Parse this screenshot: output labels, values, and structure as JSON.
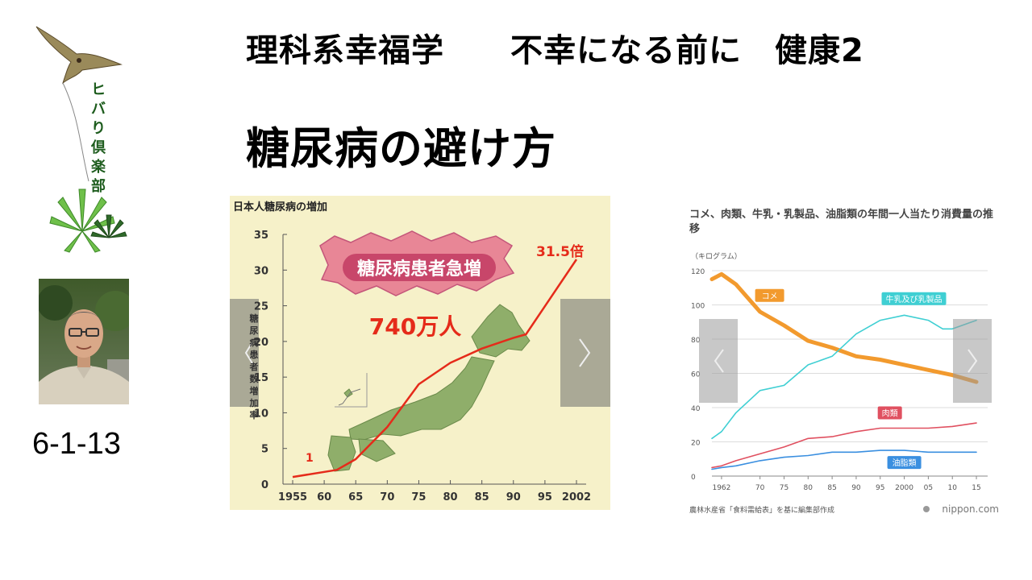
{
  "header": {
    "title": "理科系幸福学　　不幸になる前に　健康2"
  },
  "page_title": "糖尿病の避け方",
  "club": {
    "name_chars": [
      "ヒ",
      "バ",
      "り",
      "倶",
      "楽",
      "部"
    ]
  },
  "lecture_code": "6-1-13",
  "colors": {
    "cream_bg": "#f6f1c9",
    "red_line": "#e52b1a",
    "japan_green": "#8fae6a",
    "orange": "#f29a2e",
    "cyan": "#3fcfd3",
    "red": "#e05060",
    "blue": "#3a8fe0"
  },
  "chart_data": [
    {
      "type": "line",
      "title": "日本人糖尿病の増加",
      "ylabel": "糖尿病患者数増加率",
      "x_ticks": [
        "1955",
        "60",
        "65",
        "70",
        "75",
        "80",
        "85",
        "90",
        "95",
        "2002"
      ],
      "y_ticks": [
        "0",
        "5",
        "10",
        "15",
        "20",
        "25",
        "30",
        "35"
      ],
      "ylim": [
        0,
        35
      ],
      "series": [
        {
          "values": [
            [
              1955,
              1
            ],
            [
              1962,
              2
            ],
            [
              1965,
              3.5
            ],
            [
              1970,
              8
            ],
            [
              1975,
              14
            ],
            [
              1980,
              17
            ],
            [
              1985,
              19
            ],
            [
              1990,
              20.5
            ],
            [
              1992,
              21
            ],
            [
              2002,
              31.5
            ]
          ]
        }
      ],
      "annotations": {
        "start_label": "1",
        "end_label": "31.5倍",
        "banner": "糖尿病患者急増",
        "count_label": "740万人"
      }
    },
    {
      "type": "line",
      "title": "コメ、肉類、牛乳・乳製品、油脂類の年間一人当たり消費量の推移",
      "unit": "（キログラム）",
      "x_ticks": [
        "1962",
        "70",
        "75",
        "80",
        "85",
        "90",
        "95",
        "2000",
        "05",
        "10",
        "15"
      ],
      "y_ticks": [
        "0",
        "20",
        "40",
        "60",
        "80",
        "100",
        "120"
      ],
      "ylim": [
        0,
        120
      ],
      "xlim": [
        1960,
        2016
      ],
      "series": [
        {
          "name": "コメ",
          "color": "#f29a2e",
          "values": [
            [
              1960,
              115
            ],
            [
              1962,
              118
            ],
            [
              1965,
              112
            ],
            [
              1970,
              96
            ],
            [
              1975,
              88
            ],
            [
              1980,
              79
            ],
            [
              1985,
              75
            ],
            [
              1990,
              70
            ],
            [
              1995,
              68
            ],
            [
              2000,
              65
            ],
            [
              2005,
              62
            ],
            [
              2010,
              59
            ],
            [
              2015,
              55
            ]
          ]
        },
        {
          "name": "牛乳及び乳製品",
          "color": "#3fcfd3",
          "values": [
            [
              1960,
              22
            ],
            [
              1962,
              26
            ],
            [
              1965,
              37
            ],
            [
              1970,
              50
            ],
            [
              1975,
              53
            ],
            [
              1980,
              65
            ],
            [
              1985,
              70
            ],
            [
              1990,
              83
            ],
            [
              1995,
              91
            ],
            [
              2000,
              94
            ],
            [
              2005,
              91
            ],
            [
              2008,
              86
            ],
            [
              2010,
              86
            ],
            [
              2015,
              91
            ]
          ]
        },
        {
          "name": "肉類",
          "color": "#e05060",
          "values": [
            [
              1960,
              5
            ],
            [
              1962,
              6
            ],
            [
              1965,
              9
            ],
            [
              1970,
              13
            ],
            [
              1975,
              17
            ],
            [
              1980,
              22
            ],
            [
              1985,
              23
            ],
            [
              1990,
              26
            ],
            [
              1995,
              28
            ],
            [
              2000,
              28
            ],
            [
              2005,
              28
            ],
            [
              2010,
              29
            ],
            [
              2015,
              31
            ]
          ]
        },
        {
          "name": "油脂類",
          "color": "#3a8fe0",
          "values": [
            [
              1960,
              4
            ],
            [
              1962,
              5
            ],
            [
              1965,
              6
            ],
            [
              1970,
              9
            ],
            [
              1975,
              11
            ],
            [
              1980,
              12
            ],
            [
              1985,
              14
            ],
            [
              1990,
              14
            ],
            [
              1995,
              15
            ],
            [
              2000,
              15
            ],
            [
              2005,
              14
            ],
            [
              2010,
              14
            ],
            [
              2015,
              14
            ]
          ]
        }
      ],
      "source": "農林水産省「食料需給表」を基に編集部作成",
      "credit": "nippon.com"
    }
  ]
}
